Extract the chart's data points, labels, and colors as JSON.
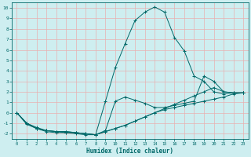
{
  "xlabel": "Humidex (Indice chaleur)",
  "bg_color": "#ceeef0",
  "grid_color": "#e8b0b0",
  "line_color": "#006868",
  "xlim": [
    -0.5,
    23.5
  ],
  "ylim": [
    -2.5,
    10.5
  ],
  "xticks": [
    0,
    1,
    2,
    3,
    4,
    5,
    6,
    7,
    8,
    9,
    10,
    11,
    12,
    13,
    14,
    15,
    16,
    17,
    18,
    19,
    20,
    21,
    22,
    23
  ],
  "yticks": [
    -2,
    -1,
    0,
    1,
    2,
    3,
    4,
    5,
    6,
    7,
    8,
    9,
    10
  ],
  "lines": [
    {
      "x": [
        0,
        1,
        2,
        3,
        4,
        5,
        6,
        7,
        8,
        9,
        10,
        11,
        12,
        13,
        14,
        15,
        16,
        17,
        18,
        19,
        20,
        21,
        22,
        23
      ],
      "y": [
        0,
        -1.1,
        -1.5,
        -1.8,
        -1.9,
        -1.9,
        -2.0,
        -2.1,
        -2.1,
        1.1,
        4.3,
        6.6,
        8.8,
        9.6,
        10.1,
        9.6,
        7.2,
        5.9,
        3.5,
        3.0,
        2.0,
        1.8,
        1.9,
        1.9
      ]
    },
    {
      "x": [
        0,
        1,
        2,
        3,
        4,
        5,
        6,
        7,
        8,
        9,
        10,
        11,
        12,
        13,
        14,
        15,
        16,
        17,
        18,
        19,
        20,
        21,
        22,
        23
      ],
      "y": [
        0,
        -1.0,
        -1.5,
        -1.7,
        -1.8,
        -1.9,
        -1.9,
        -2.0,
        -2.1,
        -1.8,
        -1.5,
        -1.2,
        -0.8,
        -0.4,
        0.0,
        0.4,
        0.8,
        1.2,
        1.6,
        2.0,
        2.4,
        2.0,
        1.9,
        1.9
      ]
    },
    {
      "x": [
        0,
        1,
        2,
        3,
        4,
        5,
        6,
        7,
        8,
        9,
        10,
        11,
        12,
        13,
        14,
        15,
        16,
        17,
        18,
        19,
        20,
        21,
        22,
        23
      ],
      "y": [
        0,
        -1.0,
        -1.5,
        -1.7,
        -1.8,
        -1.8,
        -1.9,
        -2.0,
        -2.1,
        -1.8,
        -1.5,
        -1.2,
        -0.8,
        -0.4,
        0.0,
        0.3,
        0.5,
        0.7,
        0.9,
        1.1,
        1.3,
        1.5,
        1.8,
        1.9
      ]
    },
    {
      "x": [
        0,
        1,
        2,
        3,
        4,
        5,
        6,
        7,
        8,
        9,
        10,
        11,
        12,
        13,
        14,
        15,
        16,
        17,
        18,
        19,
        20,
        21,
        22,
        23
      ],
      "y": [
        0,
        -1.0,
        -1.4,
        -1.7,
        -1.8,
        -1.8,
        -1.9,
        -2.0,
        -2.1,
        -1.7,
        1.1,
        1.5,
        1.2,
        0.9,
        0.5,
        0.5,
        0.7,
        0.9,
        1.1,
        3.5,
        3.0,
        2.0,
        1.9,
        1.9
      ]
    }
  ]
}
